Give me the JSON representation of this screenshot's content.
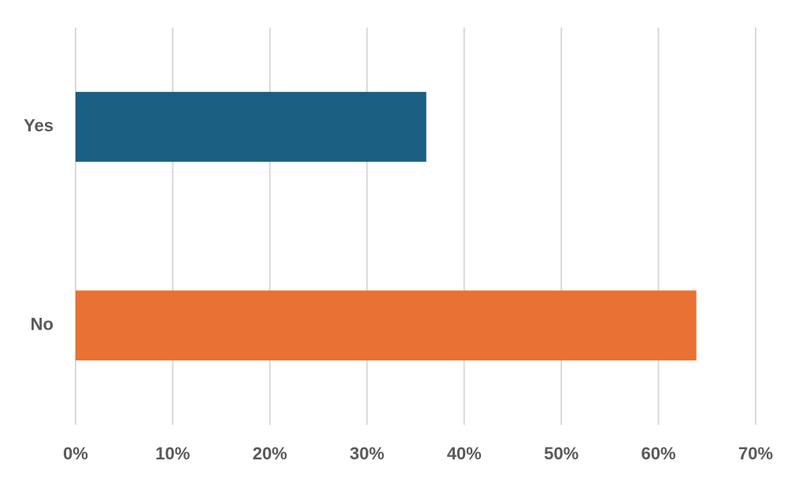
{
  "chart_data": {
    "type": "hbar",
    "categories": [
      "Yes",
      "No"
    ],
    "values": [
      36.1,
      63.9
    ],
    "colors": [
      "#1a5f82",
      "#e87133"
    ],
    "xlim": [
      0,
      70
    ],
    "xticks": [
      {
        "value": 0,
        "label": "0%"
      },
      {
        "value": 10,
        "label": "10%"
      },
      {
        "value": 20,
        "label": "20%"
      },
      {
        "value": 30,
        "label": "30%"
      },
      {
        "value": 40,
        "label": "40%"
      },
      {
        "value": 50,
        "label": "50%"
      },
      {
        "value": 60,
        "label": "60%"
      },
      {
        "value": 70,
        "label": "70%"
      }
    ],
    "grid": true
  }
}
